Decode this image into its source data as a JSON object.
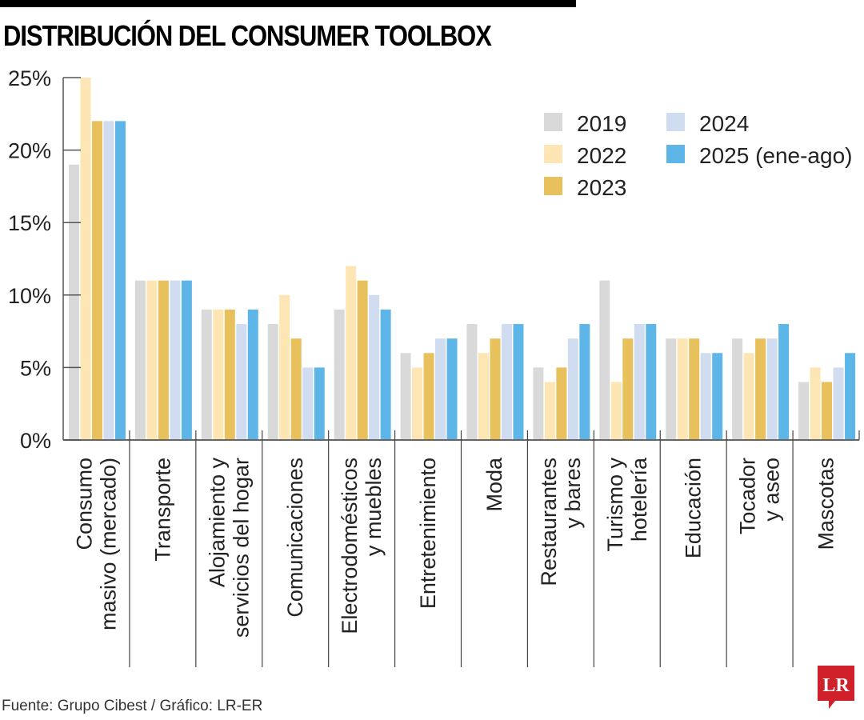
{
  "header": {
    "title": "DISTRIBUCIÓN DEL CONSUMER TOOLBOX"
  },
  "footer": {
    "source": "Fuente: Grupo Cibest / Gráfico: LR-ER",
    "logo_text": "LR",
    "logo_color": "#d0202a"
  },
  "chart_data": {
    "type": "bar",
    "title": "DISTRIBUCIÓN DEL CONSUMER TOOLBOX",
    "xlabel": "",
    "ylabel": "",
    "ylim": [
      0,
      25
    ],
    "yticks": [
      0,
      5,
      10,
      15,
      20,
      25
    ],
    "ytick_labels": [
      "0%",
      "5%",
      "10%",
      "15%",
      "20%",
      "25%"
    ],
    "grid": false,
    "legend_position": "top-right",
    "categories": [
      [
        "Consumo",
        "masivo (mercado)"
      ],
      [
        "Transporte"
      ],
      [
        "Alojamiento y",
        "servicios del hogar"
      ],
      [
        "Comunicaciones"
      ],
      [
        "Electrodomésticos",
        "y muebles"
      ],
      [
        "Entretenimiento"
      ],
      [
        "Moda"
      ],
      [
        "Restaurantes",
        "y bares"
      ],
      [
        "Turismo y",
        "hotelería"
      ],
      [
        "Educación"
      ],
      [
        "Tocador",
        "y aseo"
      ],
      [
        "Mascotas"
      ]
    ],
    "series": [
      {
        "name": "2019",
        "color": "#d9d9d9",
        "values": [
          19,
          11,
          9,
          8,
          9,
          6,
          8,
          5,
          11,
          7,
          7,
          4
        ]
      },
      {
        "name": "2022",
        "color": "#fde5b4",
        "values": [
          25,
          11,
          9,
          10,
          12,
          5,
          6,
          4,
          4,
          7,
          6,
          5
        ]
      },
      {
        "name": "2023",
        "color": "#e8c05c",
        "values": [
          22,
          11,
          9,
          7,
          11,
          6,
          7,
          5,
          7,
          7,
          7,
          4
        ]
      },
      {
        "name": "2024",
        "color": "#d0dcf0",
        "values": [
          22,
          11,
          8,
          5,
          10,
          7,
          8,
          7,
          8,
          6,
          7,
          5
        ]
      },
      {
        "name": "2025 (ene-ago)",
        "color": "#5db5e8",
        "values": [
          22,
          11,
          9,
          5,
          9,
          7,
          8,
          8,
          8,
          6,
          8,
          6
        ]
      }
    ]
  }
}
